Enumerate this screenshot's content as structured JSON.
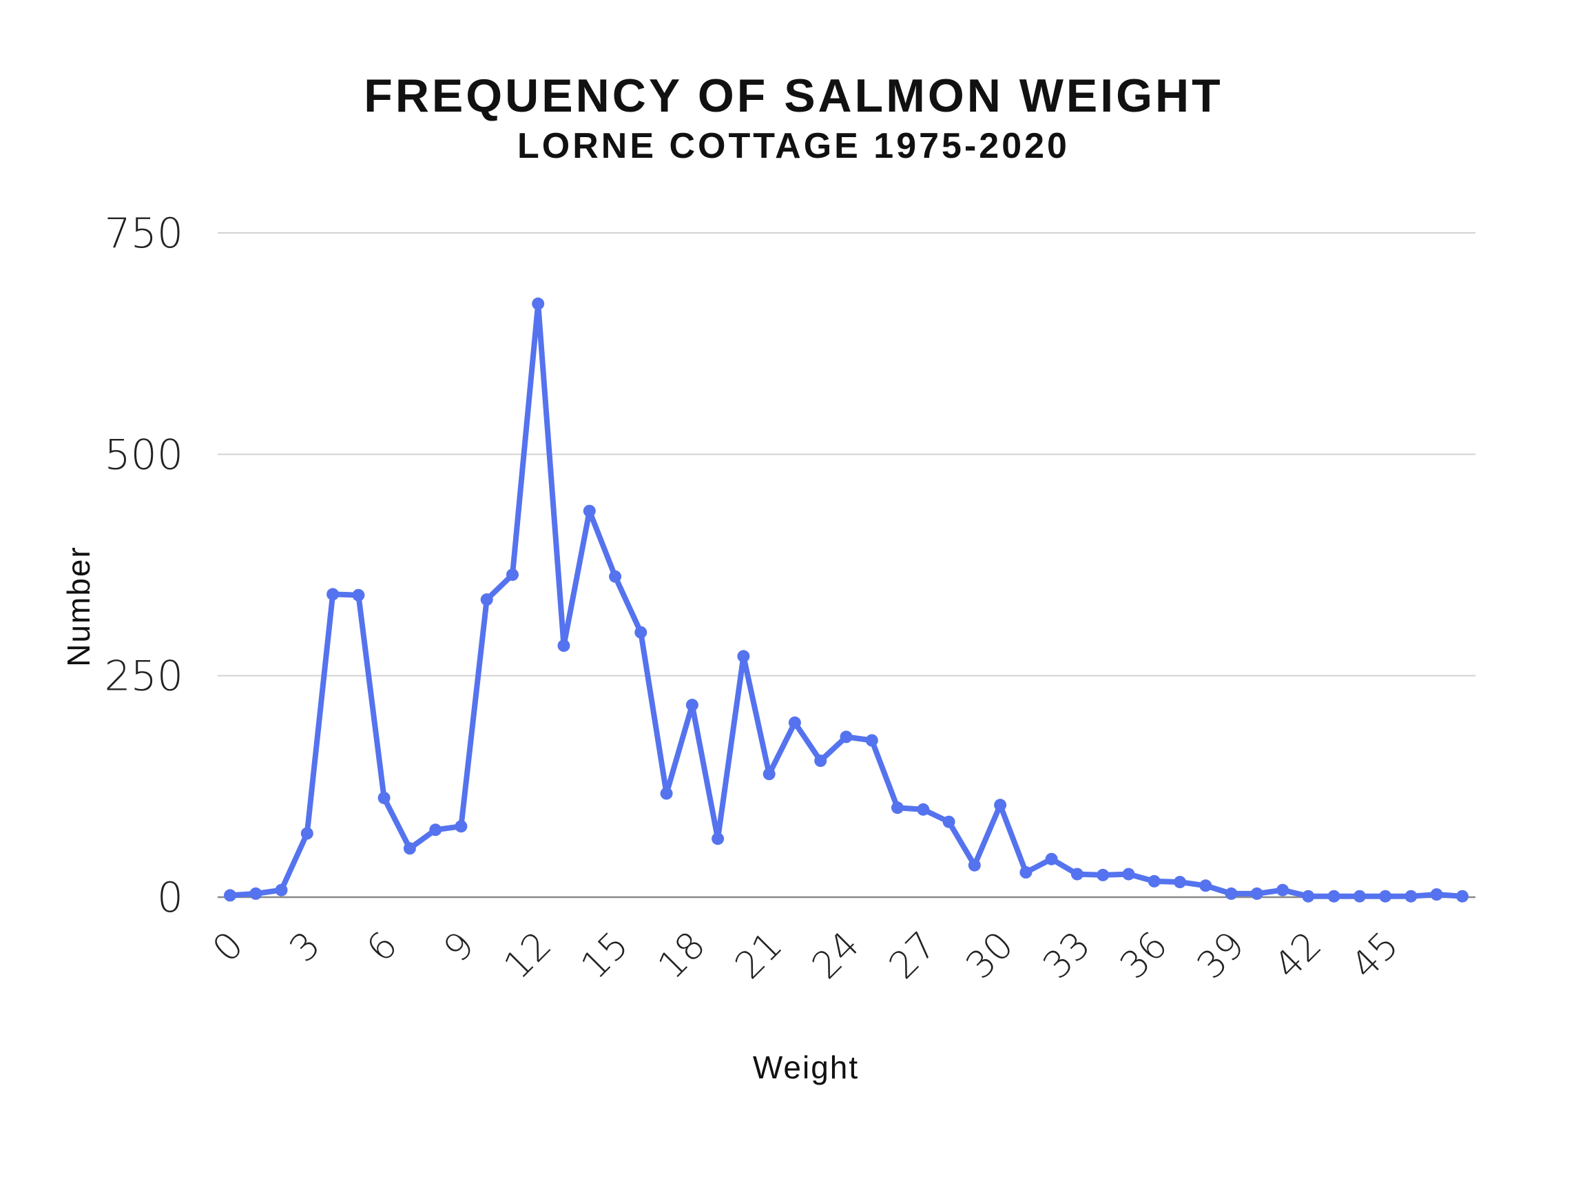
{
  "chart_data": {
    "type": "line",
    "title": "FREQUENCY OF SALMON WEIGHT",
    "subtitle": "LORNE COTTAGE 1975-2020",
    "xlabel": "Weight",
    "ylabel": "Number",
    "x": [
      0,
      1,
      2,
      3,
      4,
      5,
      6,
      7,
      8,
      9,
      10,
      11,
      12,
      13,
      14,
      15,
      16,
      17,
      18,
      19,
      20,
      21,
      22,
      23,
      24,
      25,
      26,
      27,
      28,
      29,
      30,
      31,
      32,
      33,
      34,
      35,
      36,
      37,
      38,
      39,
      40,
      41,
      42,
      43,
      44,
      45,
      46,
      47,
      48
    ],
    "values": [
      2,
      4,
      8,
      72,
      342,
      341,
      112,
      55,
      76,
      80,
      336,
      364,
      670,
      284,
      436,
      362,
      299,
      117,
      217,
      66,
      272,
      139,
      197,
      154,
      181,
      177,
      101,
      99,
      85,
      36,
      104,
      28,
      43,
      26,
      25,
      26,
      18,
      17,
      13,
      4,
      4,
      8,
      1,
      1,
      1,
      1,
      1,
      3,
      1
    ],
    "ylim": [
      0,
      750
    ],
    "yticks": [
      0,
      250,
      500,
      750
    ],
    "ytick_labels": [
      "0",
      "250",
      "500",
      "750"
    ],
    "xticks": [
      0,
      3,
      6,
      9,
      12,
      15,
      18,
      21,
      24,
      27,
      30,
      33,
      36,
      39,
      42,
      45
    ],
    "xtick_labels": [
      "0",
      "3",
      "6",
      "9",
      "12",
      "15",
      "18",
      "21",
      "24",
      "27",
      "30",
      "33",
      "36",
      "39",
      "42",
      "45"
    ],
    "grid": true,
    "line_color": "#5573ee"
  }
}
